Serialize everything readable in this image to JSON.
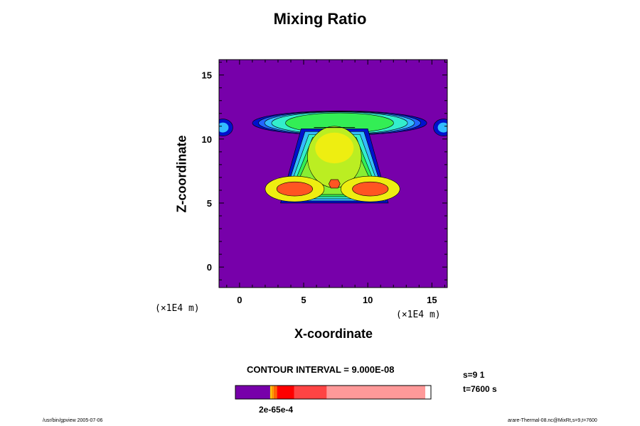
{
  "chart_data": {
    "type": "heatmap",
    "title": "Mixing Ratio",
    "xlabel": "X-coordinate",
    "ylabel": "Z-coordinate",
    "x_unit": "(×1E4 m)",
    "z_unit": "(×1E4 m)",
    "xlim": [
      -1.6,
      16.2
    ],
    "ylim": [
      -1.6,
      16.2
    ],
    "x_ticks": [
      0,
      5,
      10,
      15
    ],
    "y_ticks": [
      0,
      5,
      10,
      15
    ],
    "colors": {
      "background": "#7700aa",
      "dark_blue": "#0011cc",
      "blue": "#2266ff",
      "light_blue": "#33bbff",
      "cyan_green": "#33eecc",
      "green": "#33ee55",
      "light_green": "#88ee33",
      "yellow_green": "#bbee22",
      "yellow": "#eeee11",
      "orange": "#ff5522"
    },
    "regions": {
      "anvil_top_z": 12.2,
      "anvil_bottom_z": 10.3,
      "anvil_left_x": 1.0,
      "anvil_right_x": 14.6,
      "stem_top_z": 10.8,
      "stem_bottom_z": 5.0,
      "core_center_x": 7.4,
      "core_center_z": 9.3,
      "lobe_left_center": [
        4.3,
        6.1
      ],
      "lobe_right_center": [
        10.2,
        6.1
      ]
    },
    "colorbar": {
      "interval_text": "CONTOUR INTERVAL = 9.000E-08",
      "label": "2e-65e-4",
      "segments": [
        {
          "color": "#7700aa",
          "value": 0.178
        },
        {
          "color": "#ffcc00",
          "value": 0.007
        },
        {
          "color": "#ff9900",
          "value": 0.011
        },
        {
          "color": "#ff6600",
          "value": 0.017
        },
        {
          "color": "#ff0000",
          "value": 0.087
        },
        {
          "color": "#ff4444",
          "value": 0.167
        },
        {
          "color": "#ff9999",
          "value": 0.504
        }
      ]
    }
  },
  "info": {
    "s": "s=9 1",
    "t": "t=7600 s"
  },
  "footer": {
    "left": "/usr/bin/gpview 2005-07-06",
    "right": "arare-Thermal-08.nc@MixRt,s=9,t=7600"
  }
}
